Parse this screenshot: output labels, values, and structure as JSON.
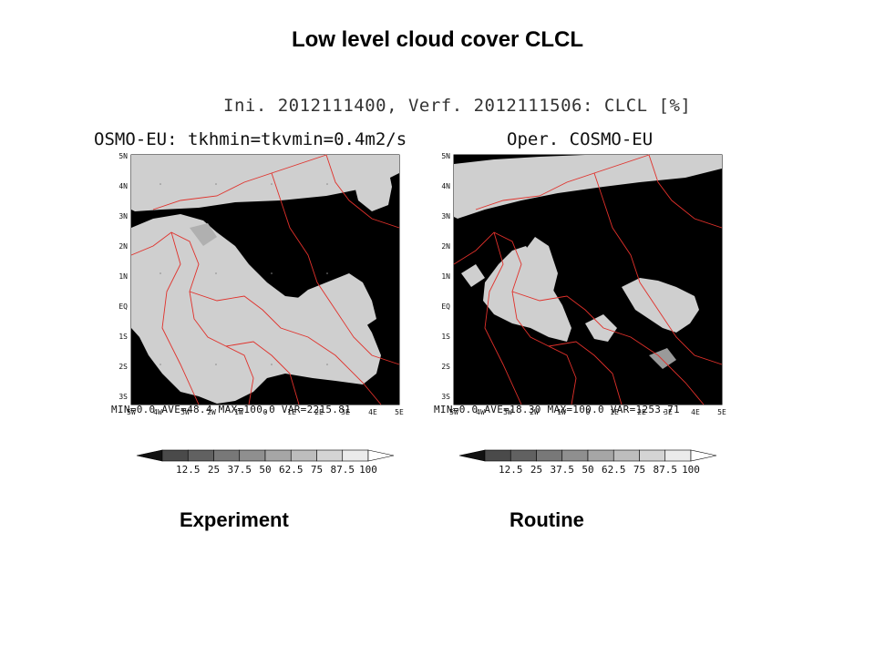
{
  "title": "Low level cloud cover CLCL",
  "subtitle": "Ini. 2012111400, Verf. 2012111506: CLCL [%]",
  "lat_labels": [
    "5N",
    "4N",
    "3N",
    "2N",
    "1N",
    "EQ",
    "1S",
    "2S",
    "3S"
  ],
  "lon_labels": [
    "5W",
    "4W",
    "3W",
    "2W",
    "1W",
    "0",
    "1E",
    "2E",
    "3E",
    "4E",
    "5E"
  ],
  "colorbar": {
    "labels": [
      "12.5",
      "25",
      "37.5",
      "50",
      "62.5",
      "75",
      "87.5",
      "100"
    ],
    "colors": [
      "#111111",
      "#4a4a4a",
      "#616161",
      "#787878",
      "#8f8f8f",
      "#a6a6a6",
      "#bdbdbd",
      "#d4d4d4",
      "#ebebeb",
      "#ffffff"
    ]
  },
  "border_color": "#e0302a",
  "panels": [
    {
      "title": "OSMO-EU: tkhmin=tkvmin=0.4m2/s",
      "stats": "MIN=0.0   AVE=48.4   MAX=100.0  VAR=2215.81",
      "caption": "Experiment"
    },
    {
      "title": "Oper. COSMO-EU",
      "stats": "MIN=0.0   AVE=18.30   MAX=100.0   VAR=1253.71",
      "caption": "Routine"
    }
  ]
}
